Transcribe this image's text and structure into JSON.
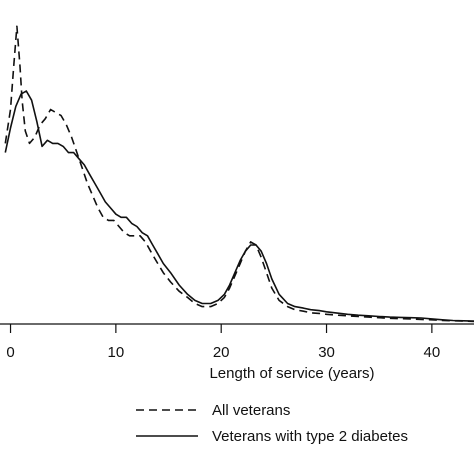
{
  "chart_data": {
    "type": "line",
    "title": "",
    "xlabel": "Length of service (years)",
    "ylabel": "",
    "xlim": [
      -1,
      44
    ],
    "ylim": [
      0,
      1
    ],
    "x_ticks": [
      0,
      10,
      20,
      30,
      40
    ],
    "x_tick_labels": [
      "0",
      "10",
      "20",
      "30",
      "40"
    ],
    "grid": false,
    "legend_position": "bottom",
    "series": [
      {
        "name": "All veterans",
        "style": "dashed",
        "color": "#111111",
        "x": [
          -0.5,
          0,
          0.3,
          0.6,
          0.9,
          1.1,
          1.4,
          1.8,
          2.3,
          2.8,
          3.3,
          3.8,
          4.3,
          4.8,
          5.3,
          5.8,
          6.3,
          6.8,
          7.3,
          7.8,
          8.3,
          8.8,
          9.3,
          9.8,
          10.3,
          10.8,
          11.3,
          11.8,
          12.3,
          12.8,
          13.3,
          13.8,
          14.5,
          15.2,
          16.0,
          16.8,
          17.5,
          18.2,
          19.0,
          19.7,
          20.3,
          20.8,
          21.3,
          21.8,
          22.3,
          22.8,
          23.3,
          23.8,
          24.3,
          24.8,
          25.5,
          26.3,
          27.0,
          27.8,
          28.5,
          29.3,
          30.0,
          31.0,
          32.0,
          33.0,
          34.0,
          35.0,
          36.0,
          37.0,
          38.0,
          39.0,
          40.0,
          41.0,
          42.0,
          43.0,
          44.0
        ],
        "y": [
          0.58,
          0.69,
          0.83,
          0.96,
          0.83,
          0.72,
          0.62,
          0.58,
          0.6,
          0.64,
          0.66,
          0.69,
          0.68,
          0.67,
          0.64,
          0.6,
          0.55,
          0.5,
          0.45,
          0.41,
          0.37,
          0.34,
          0.33,
          0.33,
          0.31,
          0.29,
          0.28,
          0.28,
          0.28,
          0.26,
          0.23,
          0.2,
          0.16,
          0.13,
          0.1,
          0.08,
          0.06,
          0.05,
          0.05,
          0.06,
          0.08,
          0.11,
          0.15,
          0.19,
          0.23,
          0.26,
          0.25,
          0.21,
          0.16,
          0.11,
          0.07,
          0.05,
          0.04,
          0.035,
          0.03,
          0.028,
          0.025,
          0.022,
          0.02,
          0.018,
          0.016,
          0.014,
          0.012,
          0.011,
          0.01,
          0.008,
          0.007,
          0.005,
          0.004,
          0.003,
          0.002
        ]
      },
      {
        "name": "Veterans with type 2 diabetes",
        "style": "solid",
        "color": "#111111",
        "x": [
          -0.5,
          0,
          0.5,
          1.0,
          1.5,
          2.0,
          2.5,
          3.0,
          3.5,
          4.0,
          4.5,
          5.0,
          5.5,
          6.0,
          6.5,
          7.0,
          7.5,
          8.0,
          8.5,
          9.0,
          9.5,
          10.0,
          10.5,
          11.0,
          11.5,
          12.0,
          12.5,
          13.0,
          13.5,
          14.0,
          14.5,
          15.2,
          16.0,
          16.8,
          17.5,
          18.2,
          19.0,
          19.7,
          20.3,
          20.8,
          21.3,
          21.8,
          22.3,
          22.8,
          23.3,
          23.8,
          24.3,
          24.8,
          25.5,
          26.3,
          27.0,
          27.8,
          28.5,
          29.3,
          30.0,
          31.0,
          32.0,
          33.0,
          34.0,
          35.0,
          36.0,
          37.0,
          38.0,
          39.0,
          40.0,
          41.0,
          42.0,
          43.0,
          44.0
        ],
        "y": [
          0.55,
          0.63,
          0.7,
          0.74,
          0.75,
          0.72,
          0.65,
          0.57,
          0.59,
          0.58,
          0.58,
          0.57,
          0.55,
          0.55,
          0.53,
          0.51,
          0.48,
          0.45,
          0.42,
          0.39,
          0.37,
          0.35,
          0.34,
          0.34,
          0.32,
          0.31,
          0.29,
          0.28,
          0.25,
          0.22,
          0.19,
          0.16,
          0.12,
          0.09,
          0.07,
          0.06,
          0.06,
          0.07,
          0.09,
          0.12,
          0.16,
          0.2,
          0.23,
          0.25,
          0.25,
          0.23,
          0.19,
          0.14,
          0.09,
          0.06,
          0.05,
          0.045,
          0.04,
          0.037,
          0.033,
          0.029,
          0.025,
          0.022,
          0.02,
          0.018,
          0.016,
          0.015,
          0.014,
          0.013,
          0.01,
          0.007,
          0.005,
          0.004,
          0.003
        ]
      }
    ]
  }
}
